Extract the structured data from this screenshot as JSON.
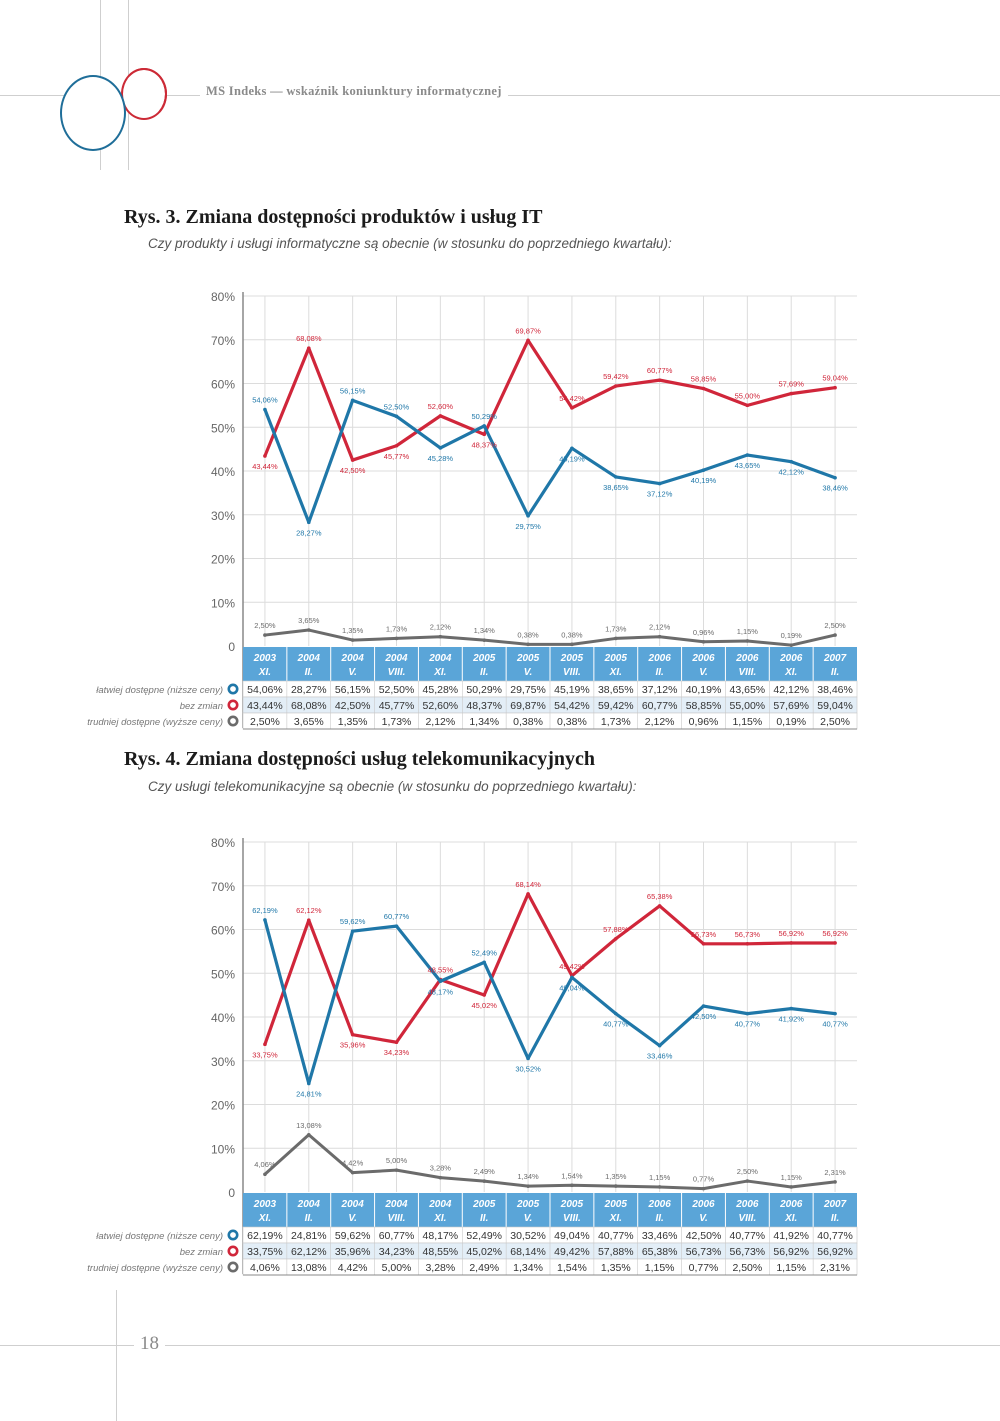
{
  "header": {
    "running_title": "MS Indeks — wskaźnik koniunktury informatycznej"
  },
  "figures": [
    {
      "title": "Rys. 3. Zmiana dostępności produktów i usług IT",
      "subtitle": "Czy produkty i usługi informatyczne są obecnie (w stosunku do poprzedniego kwartału):"
    },
    {
      "title": "Rys. 4. Zmiana dostępności usług telekomunikacyjnych",
      "subtitle": "Czy usługi telekomunikacyjne są obecnie (w stosunku do poprzedniego kwartału):"
    }
  ],
  "footer": {
    "page_number": "18"
  },
  "colors": {
    "easier": "#1f77a8",
    "unchanged": "#d0263a",
    "harder": "#6b6b6b",
    "header_band": "#5aa5d8",
    "row_alt": "#e3eef7"
  },
  "chart_data": [
    {
      "type": "line",
      "title": "Rys. 3. Zmiana dostępności produktów i usług IT",
      "subtitle": "Czy produkty i usługi informatyczne są obecnie (w stosunku do poprzedniego kwartału):",
      "xlabel": "",
      "ylabel": "",
      "ylim": [
        0,
        80
      ],
      "yticks": [
        0,
        10,
        20,
        30,
        40,
        50,
        60,
        70,
        80
      ],
      "ytick_labels": [
        "0",
        "10%",
        "20%",
        "30%",
        "40%",
        "50%",
        "60%",
        "70%",
        "80%"
      ],
      "grid": true,
      "legend": "table-left",
      "categories": [
        {
          "year": "2003",
          "period": "XI."
        },
        {
          "year": "2004",
          "period": "II."
        },
        {
          "year": "2004",
          "period": "V."
        },
        {
          "year": "2004",
          "period": "VIII."
        },
        {
          "year": "2004",
          "period": "XI."
        },
        {
          "year": "2005",
          "period": "II."
        },
        {
          "year": "2005",
          "period": "V."
        },
        {
          "year": "2005",
          "period": "VIII."
        },
        {
          "year": "2005",
          "period": "XI."
        },
        {
          "year": "2006",
          "period": "II."
        },
        {
          "year": "2006",
          "period": "V."
        },
        {
          "year": "2006",
          "period": "VIII."
        },
        {
          "year": "2006",
          "period": "XI."
        },
        {
          "year": "2007",
          "period": "II."
        }
      ],
      "series": [
        {
          "name": "łatwiej dostępne (niższe ceny)",
          "color_key": "easier",
          "values": [
            54.06,
            28.27,
            56.15,
            52.5,
            45.28,
            50.29,
            29.75,
            45.19,
            38.65,
            37.12,
            40.19,
            43.65,
            42.12,
            38.46
          ],
          "labels": [
            "54,06%",
            "28,27%",
            "56,15%",
            "52,50%",
            "45,28%",
            "50,29%",
            "29,75%",
            "45,19%",
            "38,65%",
            "37,12%",
            "40,19%",
            "43,65%",
            "42,12%",
            "38,46%"
          ]
        },
        {
          "name": "bez zmian",
          "color_key": "unchanged",
          "values": [
            43.44,
            68.08,
            42.5,
            45.77,
            52.6,
            48.37,
            69.87,
            54.42,
            59.42,
            60.77,
            58.85,
            55.0,
            57.69,
            59.04
          ],
          "labels": [
            "43,44%",
            "68,08%",
            "42,50%",
            "45,77%",
            "52,60%",
            "48,37%",
            "69,87%",
            "54,42%",
            "59,42%",
            "60,77%",
            "58,85%",
            "55,00%",
            "57,69%",
            "59,04%"
          ]
        },
        {
          "name": "trudniej dostępne (wyższe ceny)",
          "color_key": "harder",
          "values": [
            2.5,
            3.65,
            1.35,
            1.73,
            2.12,
            1.34,
            0.38,
            0.38,
            1.73,
            2.12,
            0.96,
            1.15,
            0.19,
            2.5
          ],
          "labels": [
            "2,50%",
            "3,65%",
            "1,35%",
            "1,73%",
            "2,12%",
            "1,34%",
            "0,38%",
            "0,38%",
            "1,73%",
            "2,12%",
            "0,96%",
            "1,15%",
            "0,19%",
            "2,50%"
          ]
        }
      ]
    },
    {
      "type": "line",
      "title": "Rys. 4. Zmiana dostępności usług telekomunikacyjnych",
      "subtitle": "Czy usługi telekomunikacyjne są obecnie (w stosunku do poprzedniego kwartału):",
      "xlabel": "",
      "ylabel": "",
      "ylim": [
        0,
        80
      ],
      "yticks": [
        0,
        10,
        20,
        30,
        40,
        50,
        60,
        70,
        80
      ],
      "ytick_labels": [
        "0",
        "10%",
        "20%",
        "30%",
        "40%",
        "50%",
        "60%",
        "70%",
        "80%"
      ],
      "grid": true,
      "legend": "table-left",
      "categories": [
        {
          "year": "2003",
          "period": "XI."
        },
        {
          "year": "2004",
          "period": "II."
        },
        {
          "year": "2004",
          "period": "V."
        },
        {
          "year": "2004",
          "period": "VIII."
        },
        {
          "year": "2004",
          "period": "XI."
        },
        {
          "year": "2005",
          "period": "II."
        },
        {
          "year": "2005",
          "period": "V."
        },
        {
          "year": "2005",
          "period": "VIII."
        },
        {
          "year": "2005",
          "period": "XI."
        },
        {
          "year": "2006",
          "period": "II."
        },
        {
          "year": "2006",
          "period": "V."
        },
        {
          "year": "2006",
          "period": "VIII."
        },
        {
          "year": "2006",
          "period": "XI."
        },
        {
          "year": "2007",
          "period": "II."
        }
      ],
      "series": [
        {
          "name": "łatwiej dostępne (niższe ceny)",
          "color_key": "easier",
          "values": [
            62.19,
            24.81,
            59.62,
            60.77,
            48.17,
            52.49,
            30.52,
            49.04,
            40.77,
            33.46,
            42.5,
            40.77,
            41.92,
            40.77
          ],
          "labels": [
            "62,19%",
            "24,81%",
            "59,62%",
            "60,77%",
            "48,17%",
            "52,49%",
            "30,52%",
            "49,04%",
            "40,77%",
            "33,46%",
            "42,50%",
            "40,77%",
            "41,92%",
            "40,77%"
          ]
        },
        {
          "name": "bez zmian",
          "color_key": "unchanged",
          "values": [
            33.75,
            62.12,
            35.96,
            34.23,
            48.55,
            45.02,
            68.14,
            49.42,
            57.88,
            65.38,
            56.73,
            56.73,
            56.92,
            56.92
          ],
          "labels": [
            "33,75%",
            "62,12%",
            "35,96%",
            "34,23%",
            "48,55%",
            "45,02%",
            "68,14%",
            "49,42%",
            "57,88%",
            "65,38%",
            "56,73%",
            "56,73%",
            "56,92%",
            "56,92%"
          ]
        },
        {
          "name": "trudniej dostępne (wyższe ceny)",
          "color_key": "harder",
          "values": [
            4.06,
            13.08,
            4.42,
            5.0,
            3.28,
            2.49,
            1.34,
            1.54,
            1.35,
            1.15,
            0.77,
            2.5,
            1.15,
            2.31
          ],
          "labels": [
            "4,06%",
            "13,08%",
            "4,42%",
            "5,00%",
            "3,28%",
            "2,49%",
            "1,34%",
            "1,54%",
            "1,35%",
            "1,15%",
            "0,77%",
            "2,50%",
            "1,15%",
            "2,31%"
          ]
        }
      ]
    }
  ]
}
